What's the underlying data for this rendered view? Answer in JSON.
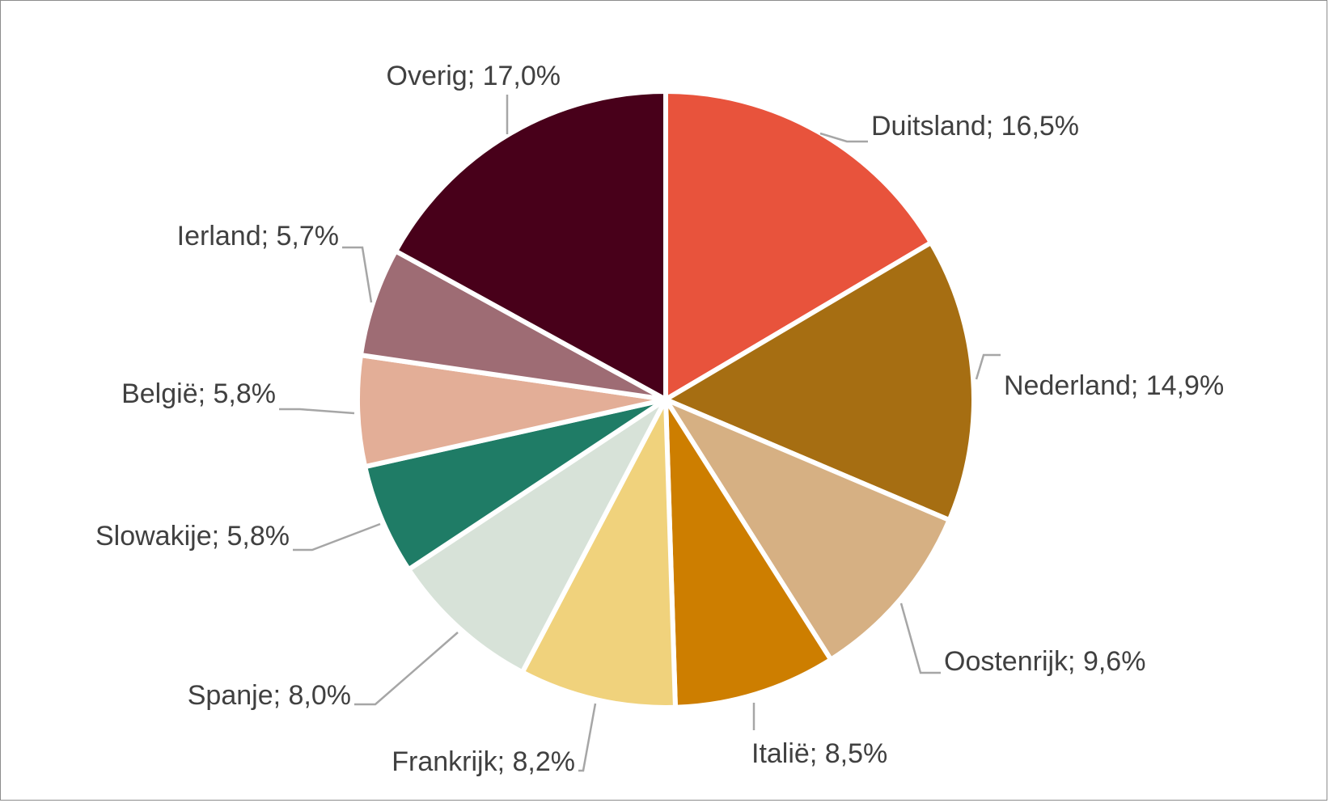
{
  "chart_data": {
    "type": "pie",
    "start_angle_deg": 0,
    "direction": "clockwise",
    "slices": [
      {
        "label": "Duitsland; 16,5%",
        "name": "Duitsland",
        "value": 16.5,
        "color": "#E8533C"
      },
      {
        "label": "Nederland; 14,9%",
        "name": "Nederland",
        "value": 14.9,
        "color": "#A66E12"
      },
      {
        "label": "Oostenrijk; 9,6%",
        "name": "Oostenrijk",
        "value": 9.6,
        "color": "#D6B083"
      },
      {
        "label": "Italië; 8,5%",
        "name": "Italië",
        "value": 8.5,
        "color": "#CD7E00"
      },
      {
        "label": "Frankrijk; 8,2%",
        "name": "Frankrijk",
        "value": 8.2,
        "color": "#F0D27C"
      },
      {
        "label": "Spanje; 8,0%",
        "name": "Spanje",
        "value": 8.0,
        "color": "#D7E2D8"
      },
      {
        "label": "Slowakije; 5,8%",
        "name": "Slowakije",
        "value": 5.8,
        "color": "#1F7C66"
      },
      {
        "label": "België; 5,8%",
        "name": "België",
        "value": 5.8,
        "color": "#E3AE97"
      },
      {
        "label": "Ierland; 5,7%",
        "name": "Ierland",
        "value": 5.7,
        "color": "#9E6C74"
      },
      {
        "label": "Overig; 17,0%",
        "name": "Overig",
        "value": 17.0,
        "color": "#48001A"
      }
    ],
    "legend": "none"
  }
}
